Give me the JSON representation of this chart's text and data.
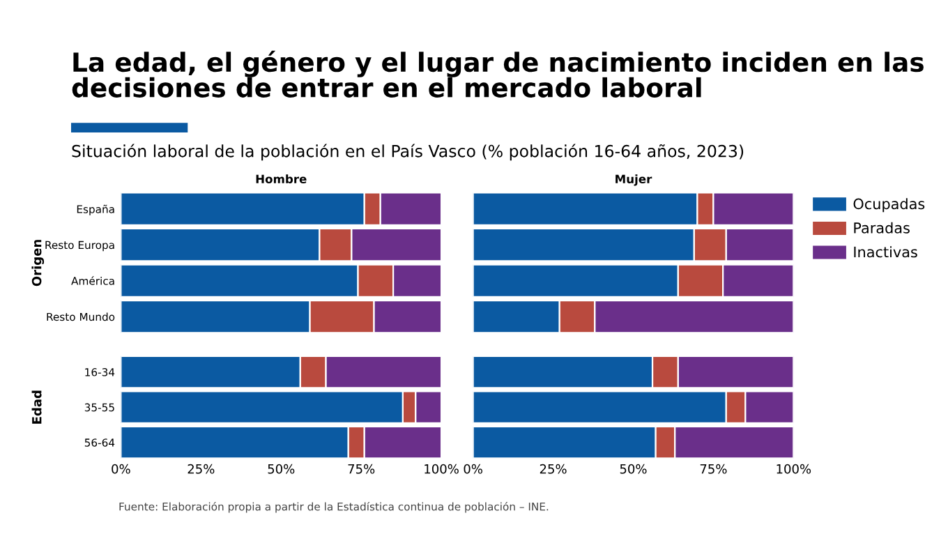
{
  "chart_data": [
    {
      "type": "other",
      "title": "La edad, el género y el lugar de nacimiento inciden en las decisiones de entrar en el mercado laboral",
      "subtitle": "Situación laboral de la población en el País Vasco (% población 16-64 años, 2023)",
      "annotations": [
        "Fuente: Elaboración propia a partir de la Estadística continua de población – INE."
      ]
    },
    {
      "type": "bar",
      "orientation": "horizontal",
      "stacked": true,
      "title": "Hombre",
      "ylabel": "Origen",
      "categories": [
        "España",
        "Resto Europa",
        "América",
        "Resto Mundo"
      ],
      "xlim": [
        0,
        100
      ],
      "tick_labels": "y",
      "series": [
        {
          "color": "#0b5aa2",
          "values": [
            76,
            62,
            74,
            59
          ]
        },
        {
          "color": "#b94a3e",
          "values": [
            5,
            10,
            11,
            20
          ]
        },
        {
          "color": "#6a2f8a",
          "values": [
            19,
            28,
            15,
            21
          ]
        }
      ]
    },
    {
      "type": "bar",
      "orientation": "horizontal",
      "stacked": true,
      "title": "Mujer",
      "categories": [
        null,
        null,
        null,
        null
      ],
      "xlim": [
        0,
        100
      ],
      "tick_labels": false,
      "legend": "right",
      "series": [
        {
          "name": "Ocupadas",
          "color": "#0b5aa2",
          "values": [
            70,
            69,
            64,
            27
          ]
        },
        {
          "name": "Paradas",
          "color": "#b94a3e",
          "values": [
            5,
            10,
            14,
            11
          ]
        },
        {
          "name": "Inactivas",
          "color": "#6a2f8a",
          "values": [
            25,
            21,
            22,
            62
          ]
        }
      ]
    },
    {
      "type": "bar",
      "orientation": "horizontal",
      "stacked": true,
      "ylabel": "Edad",
      "categories": [
        "16-34",
        "35-55",
        "56-64"
      ],
      "xlim": [
        0,
        100
      ],
      "xticks": [
        {
          "value": 0,
          "label": "0%"
        },
        {
          "value": 25,
          "label": "25%"
        },
        {
          "value": 50,
          "label": "50%"
        },
        {
          "value": 75,
          "label": "75%"
        },
        {
          "value": 100,
          "label": "100%"
        }
      ],
      "series": [
        {
          "color": "#0b5aa2",
          "values": [
            56,
            88,
            71
          ]
        },
        {
          "color": "#b94a3e",
          "values": [
            8,
            4,
            5
          ]
        },
        {
          "color": "#6a2f8a",
          "values": [
            36,
            8,
            24
          ]
        }
      ]
    },
    {
      "type": "bar",
      "orientation": "horizontal",
      "stacked": true,
      "categories": [
        null,
        null,
        null
      ],
      "xlim": [
        0,
        100
      ],
      "xticks": [
        {
          "value": 0,
          "label": "0%"
        },
        {
          "value": 25,
          "label": "25%"
        },
        {
          "value": 50,
          "label": "50%"
        },
        {
          "value": 75,
          "label": "75%"
        },
        {
          "value": 100,
          "label": "100%"
        }
      ],
      "tick_labels": "x",
      "series": [
        {
          "color": "#0b5aa2",
          "values": [
            56,
            79,
            57
          ]
        },
        {
          "color": "#b94a3e",
          "values": [
            8,
            6,
            6
          ]
        },
        {
          "color": "#6a2f8a",
          "values": [
            36,
            15,
            37
          ]
        }
      ]
    }
  ]
}
